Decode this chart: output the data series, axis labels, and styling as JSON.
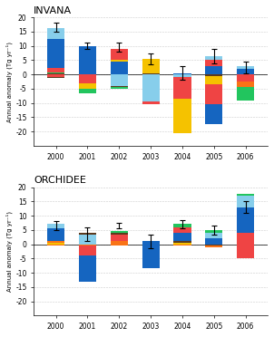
{
  "years": [
    2000,
    2001,
    2002,
    2003,
    2004,
    2005,
    2006
  ],
  "invana_title": "INVANA",
  "orchidee_title": "ORCHIDEE",
  "ylabel": "Annual anomaly (Tg yr⁻¹)",
  "ylim": [
    -25,
    20
  ],
  "yticks": [
    -20,
    -15,
    -10,
    -5,
    0,
    5,
    10,
    15,
    20
  ],
  "colors": [
    "#1a56b0",
    "#e8401c",
    "#f5c200",
    "#87ceeb",
    "#3db34a",
    "#1a56b0",
    "#6d4c00",
    "#228B22"
  ],
  "invana_pos": [
    [
      4.5,
      12.0,
      0.0,
      0.0,
      0.0,
      0.0,
      0.0,
      0.0
    ],
    [
      0.0,
      10.0,
      0.0,
      0.0,
      0.0,
      0.0,
      0.0,
      0.0
    ],
    [
      0.0,
      4.5,
      5.0,
      0.0,
      0.0,
      0.0,
      0.0,
      0.0
    ],
    [
      0.0,
      0.0,
      0.0,
      0.0,
      5.5,
      0.0,
      0.0,
      0.0
    ],
    [
      0.5,
      0.0,
      0.0,
      0.0,
      0.0,
      0.0,
      0.0,
      0.0
    ],
    [
      0.0,
      6.5,
      0.0,
      0.0,
      0.0,
      0.0,
      0.0,
      0.0
    ],
    [
      0.0,
      0.0,
      2.5,
      0.0,
      0.0,
      0.0,
      0.0,
      0.0
    ]
  ],
  "invana_neg": [
    [
      0.0,
      0.0,
      0.0,
      0.0,
      -1.0,
      -0.5,
      -0.3,
      0.0
    ],
    [
      0.0,
      0.0,
      -3.0,
      0.0,
      -1.5,
      -2.0,
      -0.5,
      0.0
    ],
    [
      0.0,
      0.0,
      0.0,
      -4.0,
      -2.0,
      -1.5,
      -0.5,
      0.0
    ],
    [
      0.0,
      0.0,
      -9.5,
      0.0,
      -0.8,
      0.0,
      0.0,
      0.0
    ],
    [
      0.0,
      0.0,
      -12.0,
      -7.5,
      -1.0,
      0.0,
      -0.5,
      0.0
    ],
    [
      0.0,
      0.0,
      -7.0,
      -8.0,
      -2.0,
      0.0,
      -0.5,
      0.0
    ],
    [
      0.0,
      0.0,
      0.0,
      -4.5,
      -2.5,
      0.0,
      -4.5,
      0.0
    ]
  ],
  "orchidee_pos": [
    [
      0.0,
      5.0,
      1.5,
      0.0,
      0.0,
      0.0,
      0.0,
      0.0
    ],
    [
      0.5,
      3.0,
      0.0,
      0.0,
      0.0,
      0.0,
      0.0,
      0.0
    ],
    [
      0.0,
      1.5,
      2.0,
      0.0,
      0.0,
      0.0,
      1.0,
      0.0
    ],
    [
      0.0,
      1.0,
      0.0,
      0.0,
      0.0,
      0.0,
      0.0,
      0.0
    ],
    [
      0.0,
      3.5,
      3.5,
      0.0,
      0.0,
      0.0,
      0.5,
      0.0
    ],
    [
      0.0,
      2.5,
      2.5,
      0.0,
      0.0,
      0.0,
      0.0,
      0.0
    ],
    [
      0.0,
      9.0,
      0.0,
      4.0,
      0.0,
      0.0,
      0.5,
      0.0
    ]
  ],
  "orchidee_neg": [
    [
      0.0,
      0.0,
      0.0,
      -1.0,
      -0.5,
      0.0,
      0.0,
      0.0
    ],
    [
      0.0,
      -9.0,
      -4.0,
      0.0,
      -0.5,
      -0.5,
      0.0,
      0.0
    ],
    [
      0.0,
      0.0,
      -1.0,
      0.0,
      -0.5,
      0.0,
      0.0,
      0.0
    ],
    [
      0.0,
      -8.5,
      0.0,
      0.0,
      -0.5,
      0.0,
      0.0,
      0.0
    ],
    [
      0.0,
      0.0,
      -0.5,
      0.0,
      -0.5,
      0.0,
      0.0,
      0.0
    ],
    [
      0.0,
      -0.5,
      0.0,
      0.0,
      -0.5,
      0.0,
      0.0,
      0.0
    ],
    [
      0.0,
      -5.0,
      0.0,
      0.0,
      -0.5,
      0.0,
      0.0,
      0.0
    ]
  ],
  "invana_err_center": [
    16.5,
    10.0,
    9.5,
    5.5,
    0.5,
    6.5,
    2.5
  ],
  "invana_err_half": [
    1.5,
    1.0,
    1.5,
    2.0,
    2.5,
    2.5,
    2.0
  ],
  "orchidee_err_center": [
    6.5,
    3.5,
    6.5,
    1.0,
    7.0,
    5.0,
    13.0
  ],
  "orchidee_err_half": [
    1.5,
    2.5,
    1.0,
    2.5,
    1.5,
    1.5,
    2.0
  ],
  "seg_colors": [
    "#87ceeb",
    "#1a56b0",
    "#e84c3d",
    "#f5c200",
    "#3db34a",
    "#f97316",
    "#5c3a1e",
    "#228B22"
  ]
}
